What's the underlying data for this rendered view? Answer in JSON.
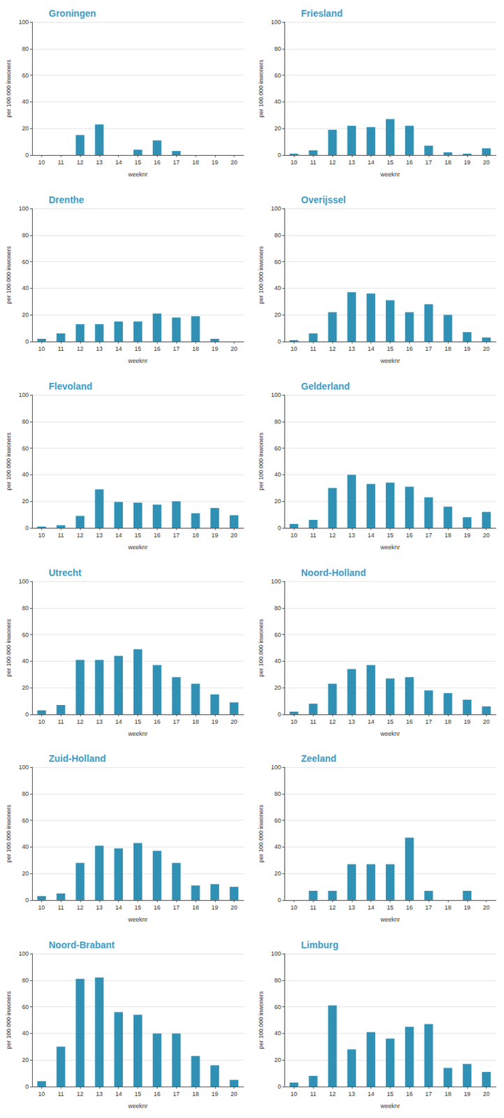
{
  "chart_data": [
    {
      "type": "bar",
      "title": "Groningen",
      "xlabel": "weeknr",
      "ylabel": "per 100.000 inwoners",
      "categories": [
        "10",
        "11",
        "12",
        "13",
        "14",
        "15",
        "16",
        "17",
        "18",
        "19",
        "20"
      ],
      "values": [
        0,
        0,
        15,
        23,
        0,
        4,
        11,
        3,
        0,
        0,
        0
      ],
      "color": "#3191b4",
      "ylim": [
        0,
        100
      ],
      "yticks": [
        0,
        20,
        40,
        60,
        80,
        100
      ],
      "grid": true
    },
    {
      "type": "bar",
      "title": "Friesland",
      "xlabel": "weeknr",
      "ylabel": "per 100.000 inwoners",
      "categories": [
        "10",
        "11",
        "12",
        "13",
        "14",
        "15",
        "16",
        "17",
        "18",
        "19",
        "20"
      ],
      "values": [
        1,
        3.5,
        19,
        22,
        21,
        27,
        22,
        7,
        2,
        1,
        5
      ],
      "color": "#3191b4",
      "ylim": [
        0,
        100
      ],
      "yticks": [
        0,
        20,
        40,
        60,
        80,
        100
      ],
      "grid": true
    },
    {
      "type": "bar",
      "title": "Drenthe",
      "xlabel": "weeknr",
      "ylabel": "per 100.000 inwoners",
      "categories": [
        "10",
        "11",
        "12",
        "13",
        "14",
        "15",
        "16",
        "17",
        "18",
        "19",
        "20"
      ],
      "values": [
        2,
        6,
        13,
        13,
        15,
        15,
        21,
        18,
        19,
        2,
        0
      ],
      "color": "#3191b4",
      "ylim": [
        0,
        100
      ],
      "yticks": [
        0,
        20,
        40,
        60,
        80,
        100
      ],
      "grid": true
    },
    {
      "type": "bar",
      "title": "Overijssel",
      "xlabel": "weeknr",
      "ylabel": "per 100.000 inwoners",
      "categories": [
        "10",
        "11",
        "12",
        "13",
        "14",
        "15",
        "16",
        "17",
        "18",
        "19",
        "20"
      ],
      "values": [
        1,
        6,
        22,
        37,
        36,
        31,
        22,
        28,
        20,
        7,
        3
      ],
      "color": "#3191b4",
      "ylim": [
        0,
        100
      ],
      "yticks": [
        0,
        20,
        40,
        60,
        80,
        100
      ],
      "grid": true
    },
    {
      "type": "bar",
      "title": "Flevoland",
      "xlabel": "weeknr",
      "ylabel": "per 100.000 inwoners",
      "categories": [
        "10",
        "11",
        "12",
        "13",
        "14",
        "15",
        "16",
        "17",
        "18",
        "19",
        "20"
      ],
      "values": [
        1,
        2,
        9,
        29,
        19.5,
        19,
        17.5,
        20,
        11,
        15,
        9.5
      ],
      "color": "#3191b4",
      "ylim": [
        0,
        100
      ],
      "yticks": [
        0,
        20,
        40,
        60,
        80,
        100
      ],
      "grid": true
    },
    {
      "type": "bar",
      "title": "Gelderland",
      "xlabel": "weeknr",
      "ylabel": "per 100.000 inwoners",
      "categories": [
        "10",
        "11",
        "12",
        "13",
        "14",
        "15",
        "16",
        "17",
        "18",
        "19",
        "20"
      ],
      "values": [
        3,
        6,
        30,
        40,
        33,
        34,
        31,
        23,
        16,
        8,
        12
      ],
      "color": "#3191b4",
      "ylim": [
        0,
        100
      ],
      "yticks": [
        0,
        20,
        40,
        60,
        80,
        100
      ],
      "grid": true
    },
    {
      "type": "bar",
      "title": "Utrecht",
      "xlabel": "weeknr",
      "ylabel": "per 100.000 inwoners",
      "categories": [
        "10",
        "11",
        "12",
        "13",
        "14",
        "15",
        "16",
        "17",
        "18",
        "19",
        "20"
      ],
      "values": [
        3,
        7,
        41,
        41,
        44,
        49,
        37,
        28,
        23,
        15,
        9
      ],
      "color": "#3191b4",
      "ylim": [
        0,
        100
      ],
      "yticks": [
        0,
        20,
        40,
        60,
        80,
        100
      ],
      "grid": true
    },
    {
      "type": "bar",
      "title": "Noord-Holland",
      "xlabel": "weeknr",
      "ylabel": "per 100.000 inwoners",
      "categories": [
        "10",
        "11",
        "12",
        "13",
        "14",
        "15",
        "16",
        "17",
        "18",
        "19",
        "20"
      ],
      "values": [
        2,
        8,
        23,
        34,
        37,
        27,
        28,
        18,
        16,
        11,
        6
      ],
      "color": "#3191b4",
      "ylim": [
        0,
        100
      ],
      "yticks": [
        0,
        20,
        40,
        60,
        80,
        100
      ],
      "grid": true
    },
    {
      "type": "bar",
      "title": "Zuid-Holland",
      "xlabel": "weeknr",
      "ylabel": "per 100.000 inwoners",
      "categories": [
        "10",
        "11",
        "12",
        "13",
        "14",
        "15",
        "16",
        "17",
        "18",
        "19",
        "20"
      ],
      "values": [
        3,
        5,
        28,
        41,
        39,
        43,
        37,
        28,
        11,
        12,
        10
      ],
      "color": "#3191b4",
      "ylim": [
        0,
        100
      ],
      "yticks": [
        0,
        20,
        40,
        60,
        80,
        100
      ],
      "grid": true
    },
    {
      "type": "bar",
      "title": "Zeeland",
      "xlabel": "weeknr",
      "ylabel": "per 100.000 inwoners",
      "categories": [
        "10",
        "11",
        "12",
        "13",
        "14",
        "15",
        "16",
        "17",
        "18",
        "19",
        "20"
      ],
      "values": [
        0,
        7,
        7,
        27,
        27,
        27,
        47,
        7,
        0,
        7,
        0
      ],
      "color": "#3191b4",
      "ylim": [
        0,
        100
      ],
      "yticks": [
        0,
        20,
        40,
        60,
        80,
        100
      ],
      "grid": true
    },
    {
      "type": "bar",
      "title": "Noord-Brabant",
      "xlabel": "weeknr",
      "ylabel": "per 100.000 inwoners",
      "categories": [
        "10",
        "11",
        "12",
        "13",
        "14",
        "15",
        "16",
        "17",
        "18",
        "19",
        "20"
      ],
      "values": [
        4,
        30,
        81,
        82,
        56,
        54,
        40,
        40,
        23,
        16,
        5
      ],
      "color": "#3191b4",
      "ylim": [
        0,
        100
      ],
      "yticks": [
        0,
        20,
        40,
        60,
        80,
        100
      ],
      "grid": true
    },
    {
      "type": "bar",
      "title": "Limburg",
      "xlabel": "weeknr",
      "ylabel": "per 100.000 inwoners",
      "categories": [
        "10",
        "11",
        "12",
        "13",
        "14",
        "15",
        "16",
        "17",
        "18",
        "19",
        "20"
      ],
      "values": [
        3,
        8,
        61,
        28,
        41,
        36,
        45,
        47,
        14,
        17,
        11
      ],
      "color": "#3191b4",
      "ylim": [
        0,
        100
      ],
      "yticks": [
        0,
        20,
        40,
        60,
        80,
        100
      ],
      "grid": true
    }
  ]
}
